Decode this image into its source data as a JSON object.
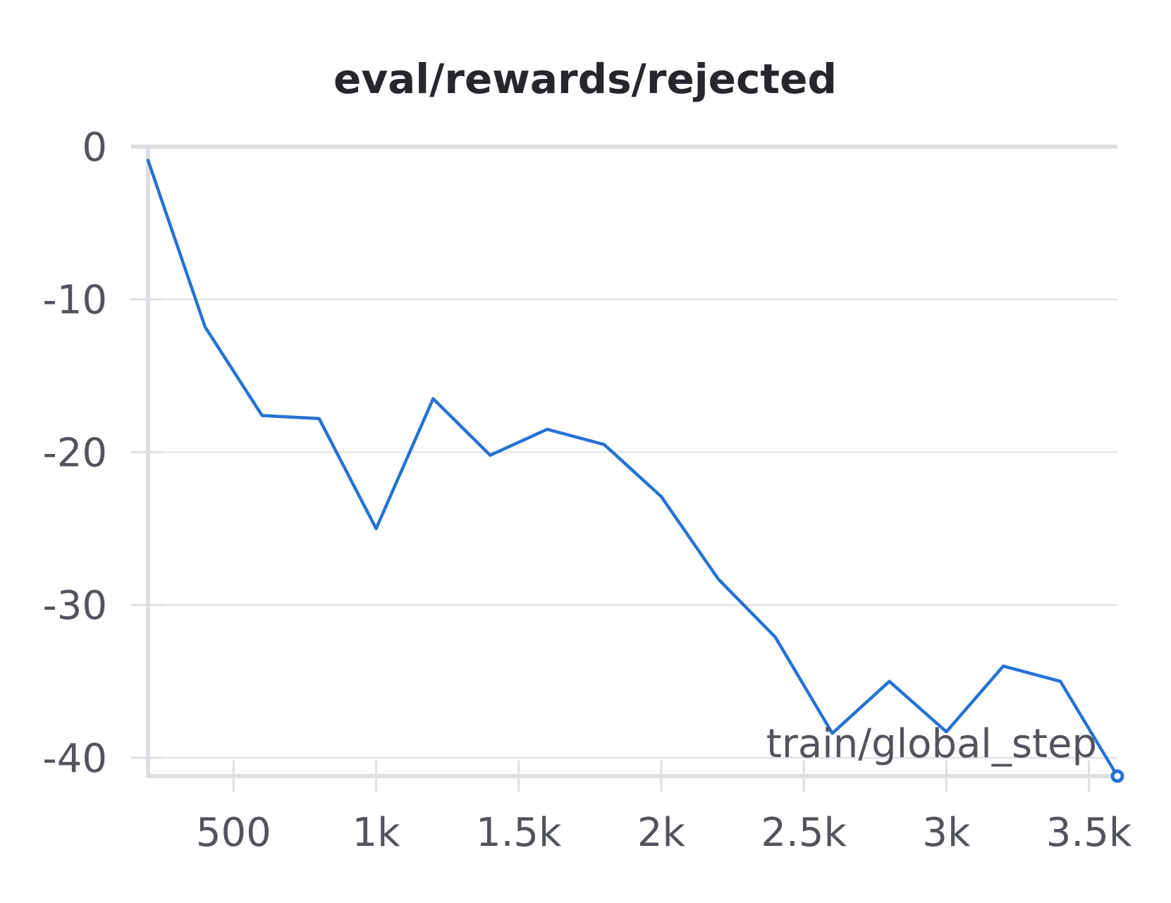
{
  "chart_data": {
    "type": "line",
    "title": "eval/rewards/rejected",
    "xlabel": "train/global_step",
    "ylabel": "",
    "xlim": [
      200,
      3600
    ],
    "ylim": [
      -41.2,
      0
    ],
    "xticks": [
      {
        "value": 500,
        "label": "500"
      },
      {
        "value": 1000,
        "label": "1k"
      },
      {
        "value": 1500,
        "label": "1.5k"
      },
      {
        "value": 2000,
        "label": "2k"
      },
      {
        "value": 2500,
        "label": "2.5k"
      },
      {
        "value": 3000,
        "label": "3k"
      },
      {
        "value": 3500,
        "label": "3.5k"
      }
    ],
    "yticks": [
      {
        "value": 0,
        "label": "0"
      },
      {
        "value": -10,
        "label": "-10"
      },
      {
        "value": -20,
        "label": "-20"
      },
      {
        "value": -30,
        "label": "-30"
      },
      {
        "value": -40,
        "label": "-40"
      }
    ],
    "grid": true,
    "series": [
      {
        "color": "#2472d4",
        "x": [
          200,
          400,
          600,
          800,
          1000,
          1200,
          1400,
          1600,
          1800,
          2000,
          2200,
          2400,
          2600,
          2800,
          3000,
          3200,
          3400,
          3600
        ],
        "y": [
          -0.9,
          -11.8,
          -17.6,
          -17.8,
          -25.0,
          -16.5,
          -20.2,
          -18.5,
          -19.5,
          -22.9,
          -28.3,
          -32.1,
          -38.4,
          -35.0,
          -38.3,
          -34.0,
          -35.0,
          -41.2
        ]
      }
    ]
  }
}
